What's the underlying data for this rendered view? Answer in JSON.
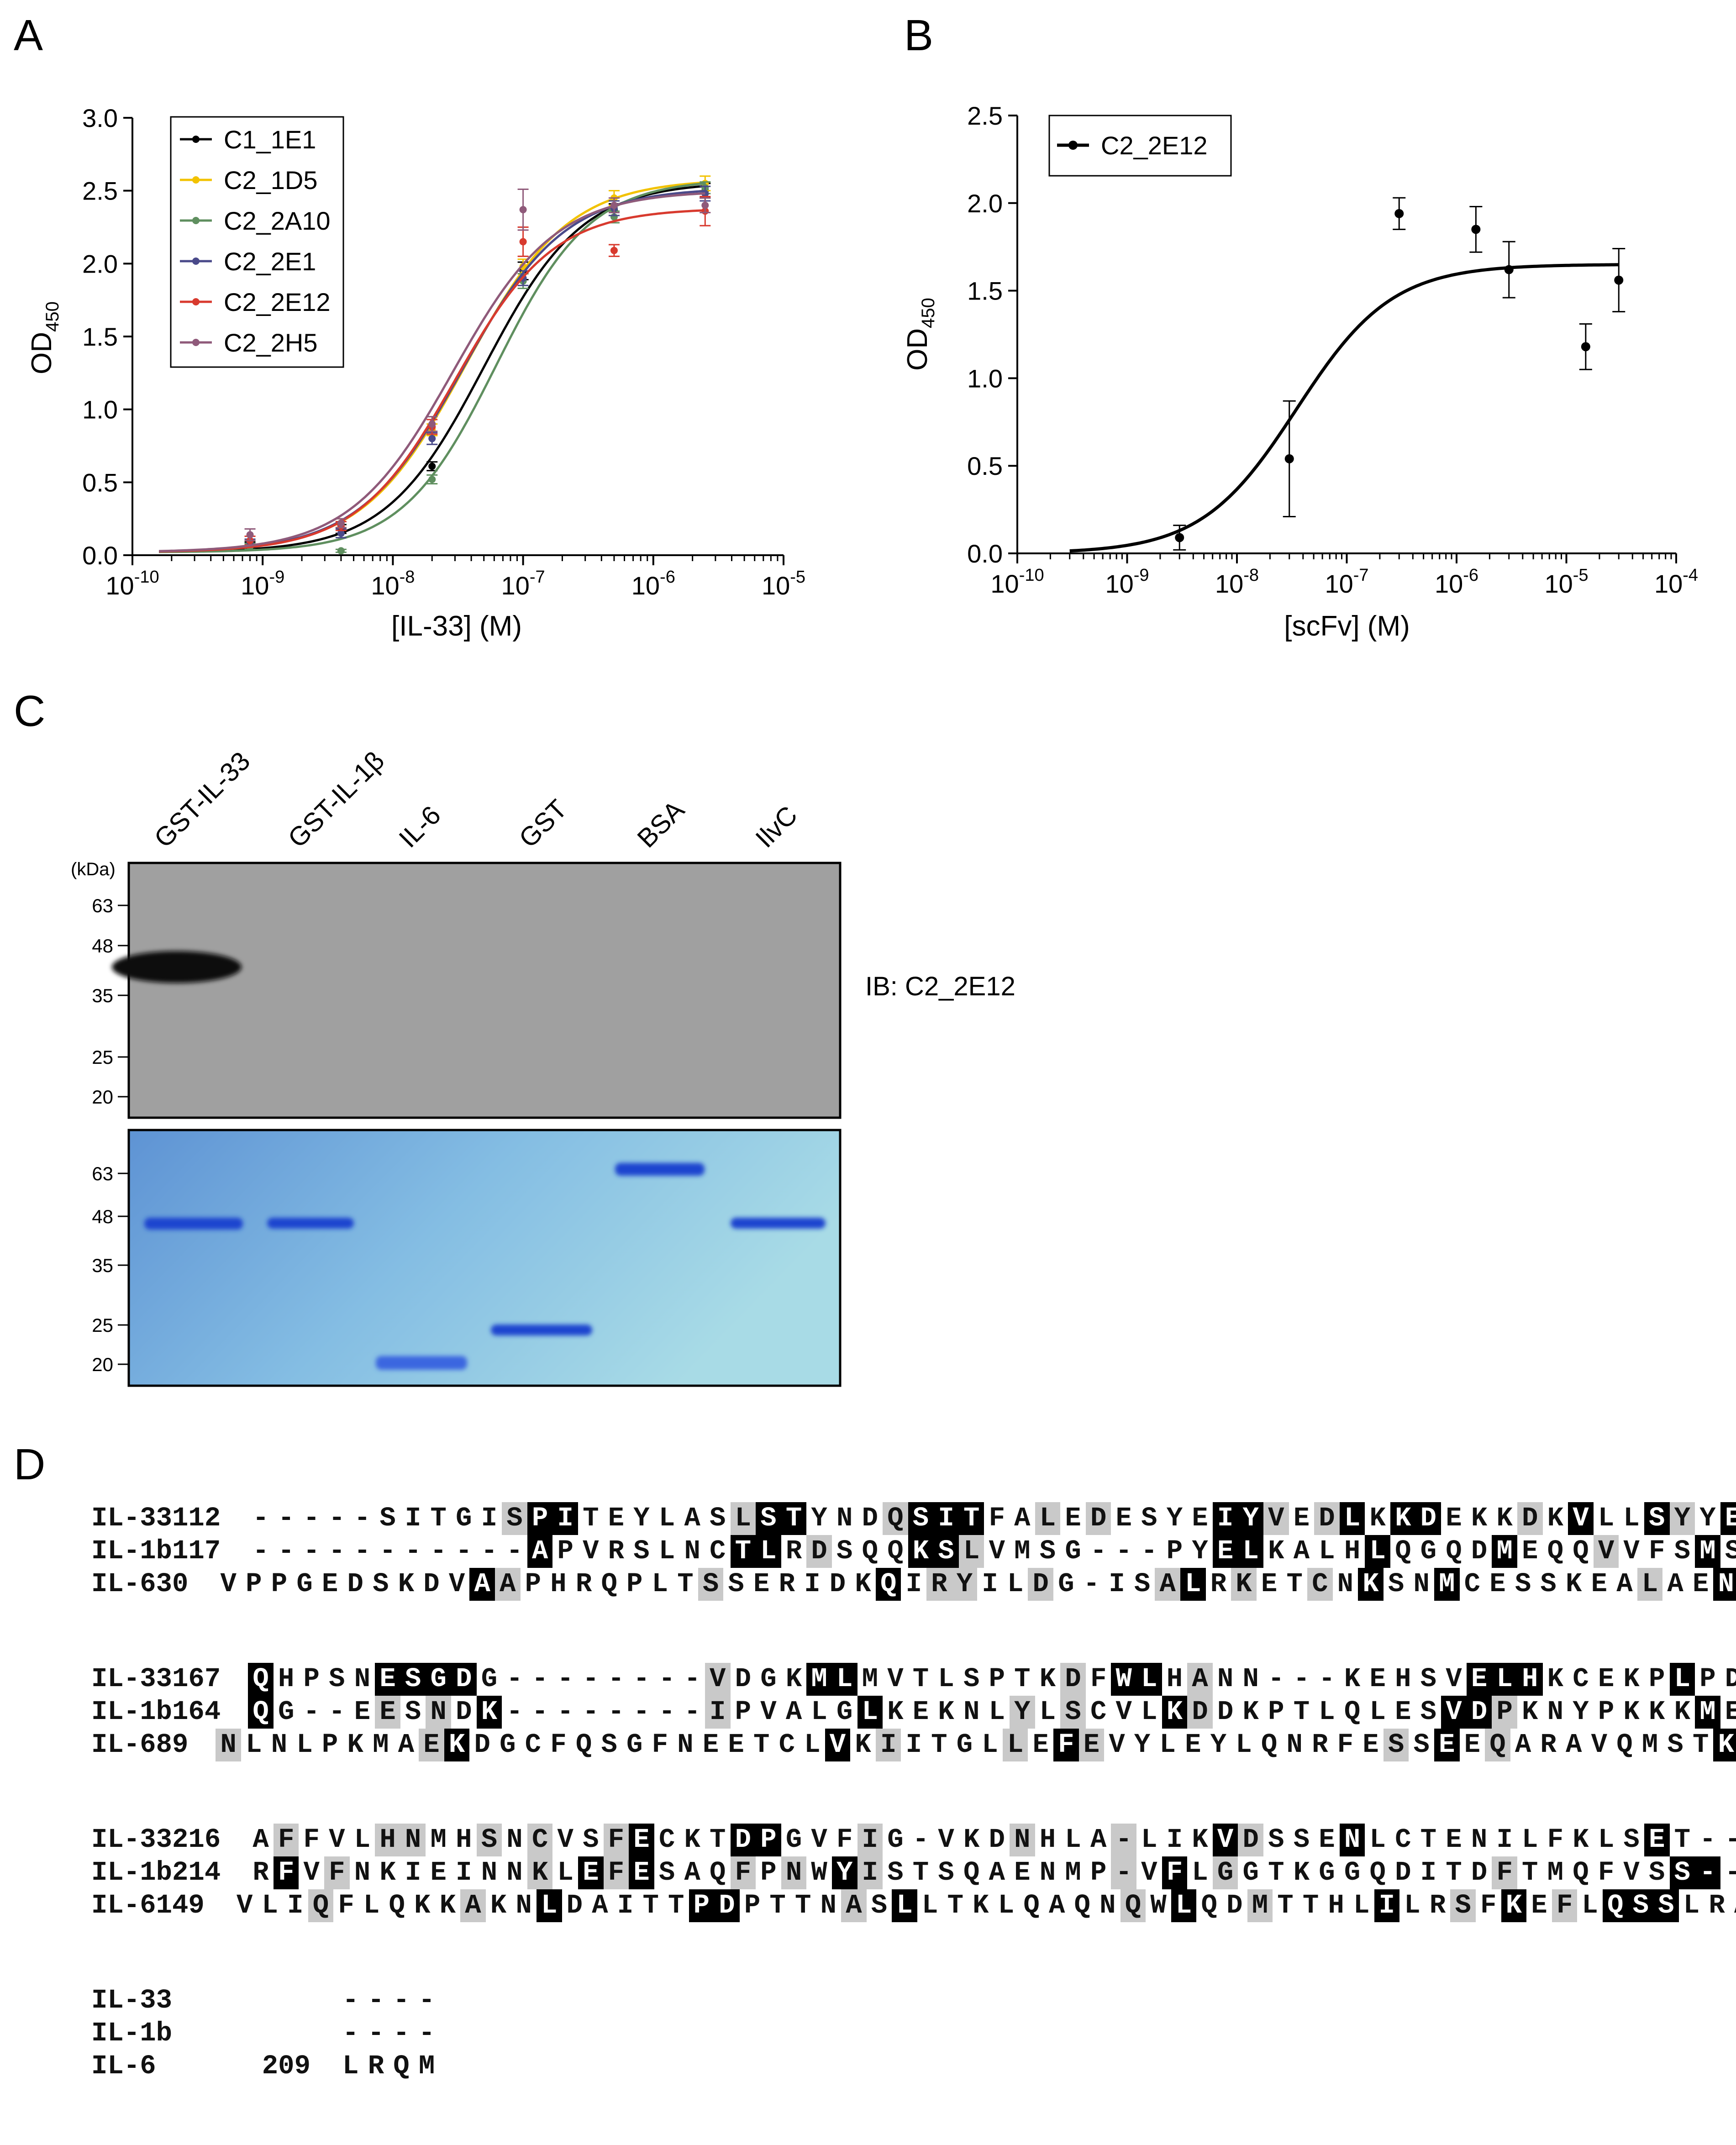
{
  "panel_labels": {
    "a": "A",
    "b": "B",
    "c": "C",
    "d": "D"
  },
  "panelA": {
    "ylabel_main": "OD",
    "ylabel_sub": "450",
    "xlabel": "[IL-33] (M)",
    "yticks": [
      "0.0",
      "0.5",
      "1.0",
      "1.5",
      "2.0",
      "2.5",
      "3.0"
    ],
    "xtick_base": "10",
    "xtick_exps": [
      "-10",
      "-9",
      "-8",
      "-7",
      "-6",
      "-5"
    ]
  },
  "panelB": {
    "ylabel_main": "OD",
    "ylabel_sub": "450",
    "xlabel": "[scFv] (M)",
    "yticks": [
      "0.0",
      "0.5",
      "1.0",
      "1.5",
      "2.0",
      "2.5"
    ],
    "xtick_base": "10",
    "xtick_exps": [
      "-10",
      "-9",
      "-8",
      "-7",
      "-6",
      "-5",
      "-4"
    ]
  },
  "chart_data": [
    {
      "type": "scatter",
      "title": "",
      "xlabel": "[IL-33] (M)",
      "ylabel": "OD450",
      "x_scale": "log",
      "xlim": [
        1e-10,
        1e-05
      ],
      "ylim": [
        0,
        3.0
      ],
      "legend_position": "top-left",
      "x": [
        8e-10,
        4e-09,
        2e-08,
        1e-07,
        5e-07,
        2.5e-06
      ],
      "series": [
        {
          "name": "C1_1E1",
          "color": "#000000",
          "values": [
            0.07,
            0.18,
            0.61,
            1.95,
            2.37,
            2.5
          ],
          "errors": [
            0.02,
            0.03,
            0.03,
            0.06,
            0.04,
            0.05
          ],
          "fit": {
            "bottom": 0.02,
            "top": 2.56,
            "ec50": 5e-08,
            "hill": 1.15
          }
        },
        {
          "name": "C2_1D5",
          "color": "#f2c200",
          "values": [
            0.08,
            0.22,
            0.86,
            1.98,
            2.45,
            2.55
          ],
          "errors": [
            0.02,
            0.03,
            0.04,
            0.05,
            0.05,
            0.05
          ],
          "fit": {
            "bottom": 0.02,
            "top": 2.58,
            "ec50": 3.6e-08,
            "hill": 1.1
          }
        },
        {
          "name": "C2_2A10",
          "color": "#5f8f5f",
          "values": [
            0.06,
            0.03,
            0.52,
            1.88,
            2.32,
            2.52
          ],
          "errors": [
            0.02,
            0.01,
            0.03,
            0.05,
            0.04,
            0.04
          ],
          "fit": {
            "bottom": 0.02,
            "top": 2.58,
            "ec50": 6.2e-08,
            "hill": 1.2
          }
        },
        {
          "name": "C2_2E1",
          "color": "#4a4a8a",
          "values": [
            0.09,
            0.15,
            0.8,
            1.9,
            2.38,
            2.48
          ],
          "errors": [
            0.02,
            0.03,
            0.04,
            0.05,
            0.05,
            0.05
          ],
          "fit": {
            "bottom": 0.02,
            "top": 2.52,
            "ec50": 3.4e-08,
            "hill": 1.1
          }
        },
        {
          "name": "C2_2E12",
          "color": "#d83a2e",
          "values": [
            0.1,
            0.2,
            0.88,
            2.15,
            2.09,
            2.36
          ],
          "errors": [
            0.03,
            0.03,
            0.05,
            0.1,
            0.04,
            0.1
          ],
          "fit": {
            "bottom": 0.02,
            "top": 2.38,
            "ec50": 3e-08,
            "hill": 1.15
          }
        },
        {
          "name": "C2_2H5",
          "color": "#8f5a7a",
          "values": [
            0.14,
            0.22,
            0.9,
            2.37,
            2.4,
            2.4
          ],
          "errors": [
            0.04,
            0.03,
            0.05,
            0.14,
            0.05,
            0.05
          ],
          "fit": {
            "bottom": 0.02,
            "top": 2.5,
            "ec50": 2.9e-08,
            "hill": 1.1
          }
        }
      ]
    },
    {
      "type": "scatter",
      "title": "",
      "xlabel": "[scFv] (M)",
      "ylabel": "OD450",
      "x_scale": "log",
      "xlim": [
        1e-10,
        0.0001
      ],
      "ylim": [
        0,
        2.5
      ],
      "legend_position": "top-left",
      "x": [
        3e-09,
        3e-08,
        3e-07,
        1.5e-06,
        3e-06,
        1.5e-05,
        3e-05
      ],
      "series": [
        {
          "name": "C2_2E12",
          "color": "#000000",
          "values": [
            0.09,
            0.54,
            1.94,
            1.85,
            1.62,
            1.18,
            1.56
          ],
          "errors": [
            0.07,
            0.33,
            0.09,
            0.13,
            0.16,
            0.13,
            0.18
          ],
          "fit": {
            "bottom": 0.0,
            "top": 1.65,
            "ec50": 3.5e-08,
            "hill": 1.0,
            "x_from": 3e-10,
            "x_to": 3e-05
          }
        }
      ]
    }
  ],
  "panelC": {
    "lanes": [
      "GST-IL-33",
      "GST-IL-1β",
      "IL-6",
      "GST",
      "BSA",
      "IlvC"
    ],
    "kda_label": "(kDa)",
    "blot_markers": [
      "63",
      "48",
      "35",
      "25",
      "20"
    ],
    "gel_markers": [
      "63",
      "48",
      "35",
      "25",
      "20"
    ],
    "ib_label": "IB: C2_2E12"
  },
  "panelD": {
    "blocks": [
      {
        "rows": [
          {
            "name": "IL-33",
            "start": "112",
            "seq": "-----SITGISPITEYLASLSTYNDQSITFALEDESYEIYVEDLKKDEKKDKVLLSYYES",
            "mask": "..........gbb......gbb...gbbb..g.g....bbg.gb.bb...g.b..bg.b."
          },
          {
            "name": "IL-1b",
            "start": "117",
            "seq": "-----------APVRSLNCTLRDSQQKSLVMSG---PYELKALHLQGQDMEQQVVFSMSFV",
            "mask": "...........b.......bb.g...bbg.........bb....b....b...g...b..."
          },
          {
            "name": "IL-6",
            "start": "30",
            "seq": "VPPGEDSKDVAAPHRQPLTSSERIDKQIRYILDG-ISALRKETCNKSNMCESSKEALAEN",
            "mask": "..........bg.......g......b.gg..g....gb.g..g.b..b.......g..b"
          }
        ]
      },
      {
        "rows": [
          {
            "name": "IL-33",
            "start": "167",
            "seq": "QHPSNESGDG--------VDGKMLMVTLSPTKDFWLHANN---KEHSVELHKCEKPLPDQ",
            "mask": "b....bbbb.........g...bb........g.bb.g..........bbb.....b..g"
          },
          {
            "name": "IL-1b",
            "start": "164",
            "seq": "QG--EESNDK--------IPVALGLKEKNLYLSCVLKDDKPTLQLESVDPKNYPKKKMEK",
            "mask": "b....g.g.b........g.....b.....g.g...bg.........bbg.......b.b"
          },
          {
            "name": "IL-6",
            "start": "89",
            "seq": "NLNLPKMAEKDGCFQSGFNEETCLVKIITGLLEFEVYLEYLQNRFESSEEQARAVQMSTK",
            "mask": "g.......gb..............b.g....g.bg...........g.b.g........b"
          }
        ]
      },
      {
        "rows": [
          {
            "name": "IL-33",
            "start": "216",
            "seq": "AFFVLHNMHSNCVSFECKTDPGVFIG-VKDNHLA-LIKVDSSENLCTENILFKLSET---",
            "mask": ".g...gg..g.g..gb...bb...g.....g...g...bg...b...........b..."
          },
          {
            "name": "IL-1b",
            "start": "214",
            "seq": "RFVFNKIEINNKLEFESAQFPNWYISTSQAENMP-VFLGGTKGGQDITDFTMQFVSS---",
            "mask": ".b.g.......g.bgb...g.g.bg.........g.b.g..........g......bb"
          },
          {
            "name": "IL-6",
            "start": "149",
            "seq": "VLIQFLQKKAKNLDAITTPDPTTNASLLTKLQAQNQWLQDMTTHLILRSFKEFLQSSLRA",
            "mask": "...g.....g..b.....bb....g.b........g.b..g....b..g.b.g.bbb..."
          }
        ]
      },
      {
        "rows": [
          {
            "name": "IL-33",
            "start": "",
            "seq": "----",
            "mask": "...."
          },
          {
            "name": "IL-1b",
            "start": "",
            "seq": "----",
            "mask": "...."
          },
          {
            "name": "IL-6",
            "start": "209",
            "seq": "LRQM",
            "mask": "...."
          }
        ]
      }
    ]
  }
}
